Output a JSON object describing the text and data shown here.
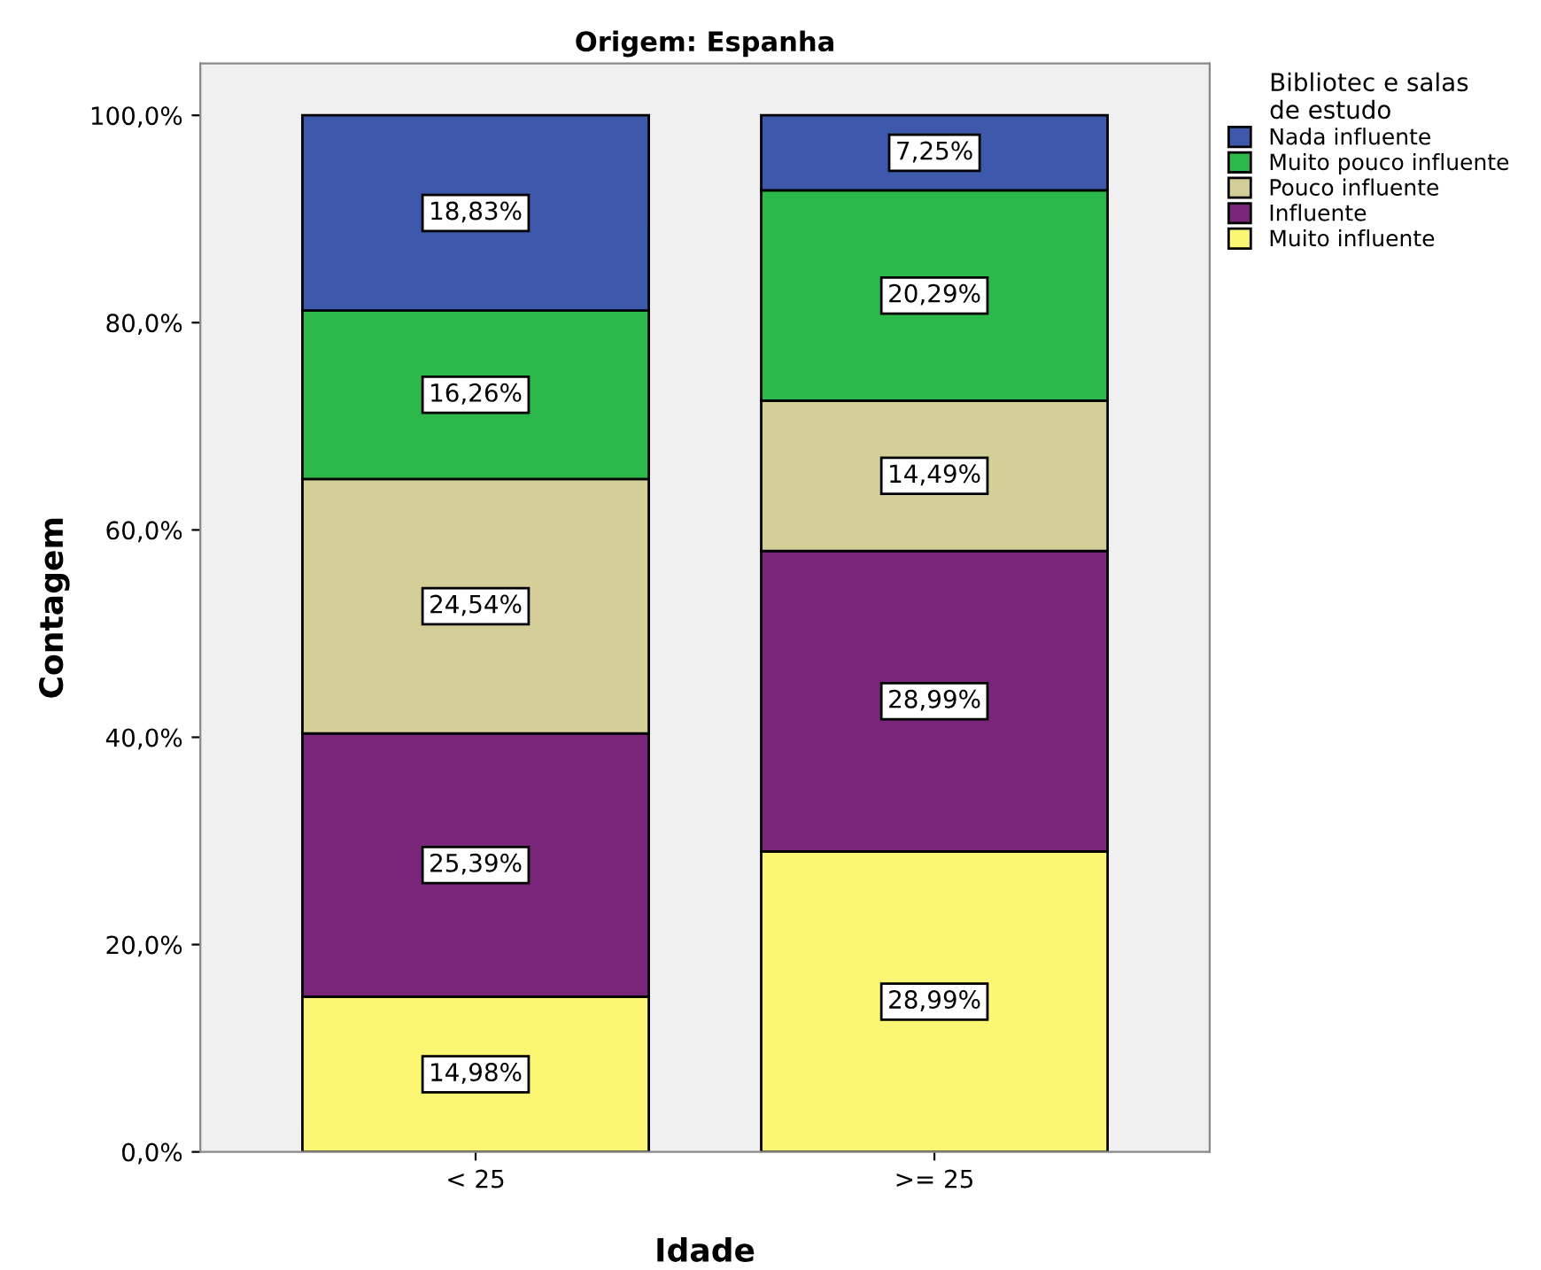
{
  "chart_data": {
    "type": "bar",
    "stacked": true,
    "title": "Origem: Espanha",
    "xlabel": "Idade",
    "ylabel": "Contagem",
    "legend_title": "Bibliotec e salas\nde estudo",
    "legend": "top right",
    "categories": [
      "< 25",
      ">= 25"
    ],
    "series": [
      {
        "name": "Muito influente",
        "color": "#fbf775",
        "values": [
          14.98,
          28.99
        ],
        "value_labels": [
          "14,98%",
          "28,99%"
        ]
      },
      {
        "name": "Influente",
        "color": "#79267a",
        "values": [
          25.39,
          28.99
        ],
        "value_labels": [
          "25,39%",
          "28,99%"
        ]
      },
      {
        "name": "Pouco influente",
        "color": "#d4cf98",
        "values": [
          24.54,
          14.49
        ],
        "value_labels": [
          "24,54%",
          "14,49%"
        ]
      },
      {
        "name": "Muito pouco influente",
        "color": "#2db84b",
        "values": [
          16.26,
          20.29
        ],
        "value_labels": [
          "16,26%",
          "20,29%"
        ]
      },
      {
        "name": "Nada influente",
        "color": "#3e58ab",
        "values": [
          18.83,
          7.25
        ],
        "value_labels": [
          "18,83%",
          "7,25%"
        ]
      }
    ],
    "ylim": [
      0,
      105
    ],
    "yticks": [
      {
        "value": 0,
        "label": "0,0%"
      },
      {
        "value": 20,
        "label": "20,0%"
      },
      {
        "value": 40,
        "label": "40,0%"
      },
      {
        "value": 60,
        "label": "60,0%"
      },
      {
        "value": 80,
        "label": "80,0%"
      },
      {
        "value": 100,
        "label": "100,0%"
      }
    ],
    "grid": false
  }
}
